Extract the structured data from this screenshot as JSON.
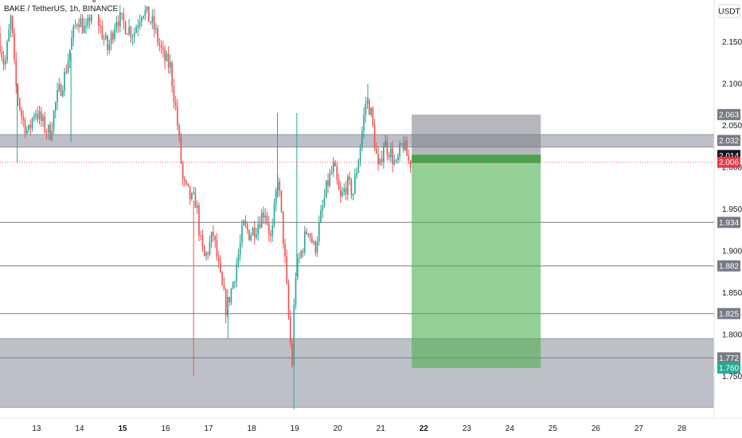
{
  "chart_data": {
    "type": "candlestick",
    "title": "BAKE / TetherUS, 1h, BINANCE",
    "currency": "USDT",
    "y_ticks": [
      "2.150",
      "2.100",
      "2.050",
      "2.000",
      "1.950",
      "1.900",
      "1.850",
      "1.800",
      "1.750"
    ],
    "x_ticks": [
      {
        "label": "13",
        "day": 13,
        "bold": false
      },
      {
        "label": "14",
        "day": 14,
        "bold": false
      },
      {
        "label": "15",
        "day": 15,
        "bold": true
      },
      {
        "label": "16",
        "day": 16,
        "bold": false
      },
      {
        "label": "17",
        "day": 17,
        "bold": false
      },
      {
        "label": "18",
        "day": 18,
        "bold": false
      },
      {
        "label": "19",
        "day": 19,
        "bold": false
      },
      {
        "label": "20",
        "day": 20,
        "bold": false
      },
      {
        "label": "21",
        "day": 21,
        "bold": false
      },
      {
        "label": "22",
        "day": 22,
        "bold": true
      },
      {
        "label": "23",
        "day": 23,
        "bold": false
      },
      {
        "label": "24",
        "day": 24,
        "bold": false
      },
      {
        "label": "25",
        "day": 25,
        "bold": false
      },
      {
        "label": "26",
        "day": 26,
        "bold": false
      },
      {
        "label": "27",
        "day": 27,
        "bold": false
      },
      {
        "label": "28",
        "day": 28,
        "bold": false
      }
    ],
    "ylim": [
      1.7,
      2.2
    ],
    "xlim": [
      12.15,
      28.75
    ],
    "colors": {
      "up": "#26a69a",
      "down": "#ef5350",
      "zone": "#b2b5be",
      "target": "#4caf50",
      "stop": "#787b86",
      "level_line": "#787b86",
      "last_price_bg": "#131722",
      "current_tag_bg": "#f23645",
      "target_tag_bg": "#22ab94"
    },
    "horizontal_levels": [
      {
        "value": 1.934,
        "label": "1.934"
      },
      {
        "value": 1.882,
        "label": "1.882"
      },
      {
        "value": 1.825,
        "label": "1.825"
      },
      {
        "value": 1.772,
        "label": "1.772"
      }
    ],
    "zones": [
      {
        "from": 2.024,
        "to": 2.039
      },
      {
        "from": 1.713,
        "to": 1.795
      }
    ],
    "position": {
      "type": "short",
      "start_day": 21.72,
      "end_day": 24.72,
      "entry": 2.014,
      "stop": 2.063,
      "target": 1.76,
      "entry_label": "2.014",
      "stop_label": "2.063",
      "target_label": "1.760",
      "upper_level_label": "2.032"
    },
    "current_price": {
      "value": 2.006,
      "label": "2.006"
    },
    "anchors": [
      [
        12.15,
        2.16
      ],
      [
        12.3,
        2.12
      ],
      [
        12.45,
        2.18
      ],
      [
        12.55,
        2.1
      ],
      [
        12.7,
        2.06
      ],
      [
        12.85,
        2.04
      ],
      [
        13.0,
        2.07
      ],
      [
        13.2,
        2.05
      ],
      [
        13.35,
        2.04
      ],
      [
        13.5,
        2.08
      ],
      [
        13.7,
        2.11
      ],
      [
        13.85,
        2.15
      ],
      [
        14.0,
        2.18
      ],
      [
        14.2,
        2.16
      ],
      [
        14.35,
        2.2
      ],
      [
        14.5,
        2.17
      ],
      [
        14.7,
        2.14
      ],
      [
        14.9,
        2.18
      ],
      [
        15.1,
        2.17
      ],
      [
        15.3,
        2.16
      ],
      [
        15.5,
        2.19
      ],
      [
        15.75,
        2.17
      ],
      [
        16.0,
        2.13
      ],
      [
        16.15,
        2.12
      ],
      [
        16.3,
        2.06
      ],
      [
        16.45,
        1.98
      ],
      [
        16.55,
        1.97
      ],
      [
        16.65,
        1.96
      ],
      [
        16.75,
        1.96
      ],
      [
        16.85,
        1.91
      ],
      [
        16.95,
        1.89
      ],
      [
        17.15,
        1.92
      ],
      [
        17.3,
        1.87
      ],
      [
        17.45,
        1.83
      ],
      [
        17.6,
        1.86
      ],
      [
        17.75,
        1.9
      ],
      [
        17.85,
        1.93
      ],
      [
        18.0,
        1.92
      ],
      [
        18.15,
        1.93
      ],
      [
        18.35,
        1.95
      ],
      [
        18.5,
        1.91
      ],
      [
        18.65,
        1.99
      ],
      [
        18.8,
        1.9
      ],
      [
        18.9,
        1.82
      ],
      [
        18.98,
        1.76
      ],
      [
        19.05,
        1.87
      ],
      [
        19.2,
        1.9
      ],
      [
        19.35,
        1.93
      ],
      [
        19.5,
        1.9
      ],
      [
        19.65,
        1.94
      ],
      [
        19.8,
        1.98
      ],
      [
        19.95,
        2.0
      ],
      [
        20.1,
        1.96
      ],
      [
        20.25,
        1.98
      ],
      [
        20.4,
        1.97
      ],
      [
        20.55,
        2.02
      ],
      [
        20.7,
        2.08
      ],
      [
        20.8,
        2.07
      ],
      [
        20.9,
        2.03
      ],
      [
        21.0,
        1.99
      ],
      [
        21.1,
        2.03
      ],
      [
        21.25,
        2.02
      ],
      [
        21.4,
        2.0
      ],
      [
        21.55,
        2.03
      ],
      [
        21.7,
        2.006
      ]
    ],
    "spikes": [
      {
        "day": 12.55,
        "low": 2.005
      },
      {
        "day": 13.8,
        "low": 2.03
      },
      {
        "day": 16.65,
        "low": 1.75
      },
      {
        "day": 17.45,
        "low": 1.795
      },
      {
        "day": 18.6,
        "high": 2.065
      },
      {
        "day": 19.05,
        "high": 2.065
      },
      {
        "day": 18.98,
        "low": 1.71
      },
      {
        "day": 20.7,
        "high": 2.1
      }
    ]
  }
}
